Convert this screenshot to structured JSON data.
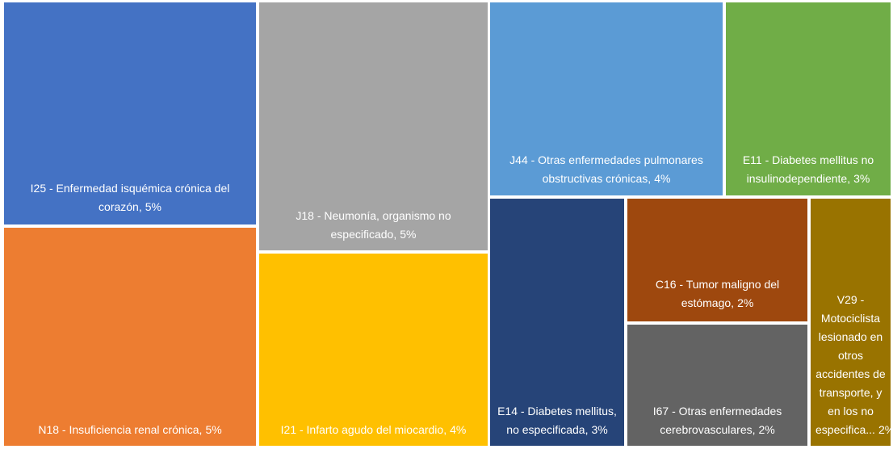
{
  "chart_data": {
    "type": "treemap",
    "categories": [
      "I25 - Enfermedad isquémica crónica del corazón,",
      "N18 - Insuficiencia renal crónica,",
      "J18 - Neumonía, organismo no especificado,",
      "I21 - Infarto agudo del miocardio,",
      "J44 - Otras enfermedades pulmonares obstructivas crónicas,",
      "E11 - Diabetes mellitus no insulinodependiente,",
      "E14 - Diabetes mellitus, no especificada,",
      "C16 - Tumor maligno del estómago,",
      "I67 - Otras enfermedades cerebrovasculares,",
      "V29 - Motociclista lesionado en otros accidentes de transporte, y en los no especifica..."
    ],
    "values": [
      5,
      5,
      5,
      4,
      4,
      3,
      3,
      2,
      2,
      2
    ],
    "value_labels": [
      "5%",
      "5%",
      "5%",
      "4%",
      "4%",
      "3%",
      "3%",
      "2%",
      "2%",
      "2%"
    ],
    "colors": [
      "#4472c4",
      "#ed7d31",
      "#a5a5a5",
      "#ffc000",
      "#5b9bd5",
      "#70ad47",
      "#264478",
      "#9e480e",
      "#636363",
      "#997300"
    ]
  }
}
